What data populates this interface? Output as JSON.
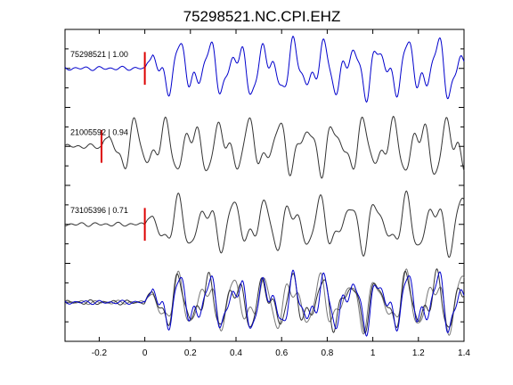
{
  "chart_data": {
    "type": "line",
    "title": "75298521.NC.CPI.EHZ",
    "xlabel": "",
    "ylabel": "",
    "xlim": [
      -0.35,
      1.4
    ],
    "xticks": [
      -0.2,
      0,
      0.2,
      0.4,
      0.6,
      0.8,
      1,
      1.2,
      1.4
    ],
    "xtick_labels": [
      "-0.2",
      "0",
      "0.2",
      "0.4",
      "0.6",
      "0.8",
      "1",
      "1.2",
      "1.4"
    ],
    "ylim": [
      0,
      8
    ],
    "grid": false,
    "colors": {
      "reference": "#0000cc",
      "match": "#333333",
      "overlay_match": "#777777",
      "pick": "#dd0000"
    },
    "series": [
      {
        "label": "75298521 | 1.00",
        "baseline": 7,
        "color": "#0000cc",
        "pick_time": 0.0,
        "noise_amp": 0.1,
        "components": [
          [
            0.85,
            8.0,
            0.0
          ],
          [
            0.45,
            14.0,
            1.0
          ],
          [
            0.25,
            23.0,
            2.1
          ]
        ],
        "growth": 0.4
      },
      {
        "label": "21005592 | 0.94",
        "baseline": 5,
        "color": "#333333",
        "pick_time": -0.19,
        "noise_amp": 0.12,
        "components": [
          [
            0.85,
            8.0,
            0.35
          ],
          [
            0.45,
            14.0,
            1.4
          ],
          [
            0.2,
            21.0,
            2.6
          ]
        ],
        "growth": 0.4
      },
      {
        "label": "73105396 | 0.71",
        "baseline": 3,
        "color": "#333333",
        "pick_time": 0.0,
        "noise_amp": 0.1,
        "components": [
          [
            0.85,
            8.0,
            0.6
          ],
          [
            0.4,
            13.0,
            1.8
          ],
          [
            0.2,
            19.0,
            3.0
          ]
        ],
        "growth": 0.45
      }
    ]
  }
}
